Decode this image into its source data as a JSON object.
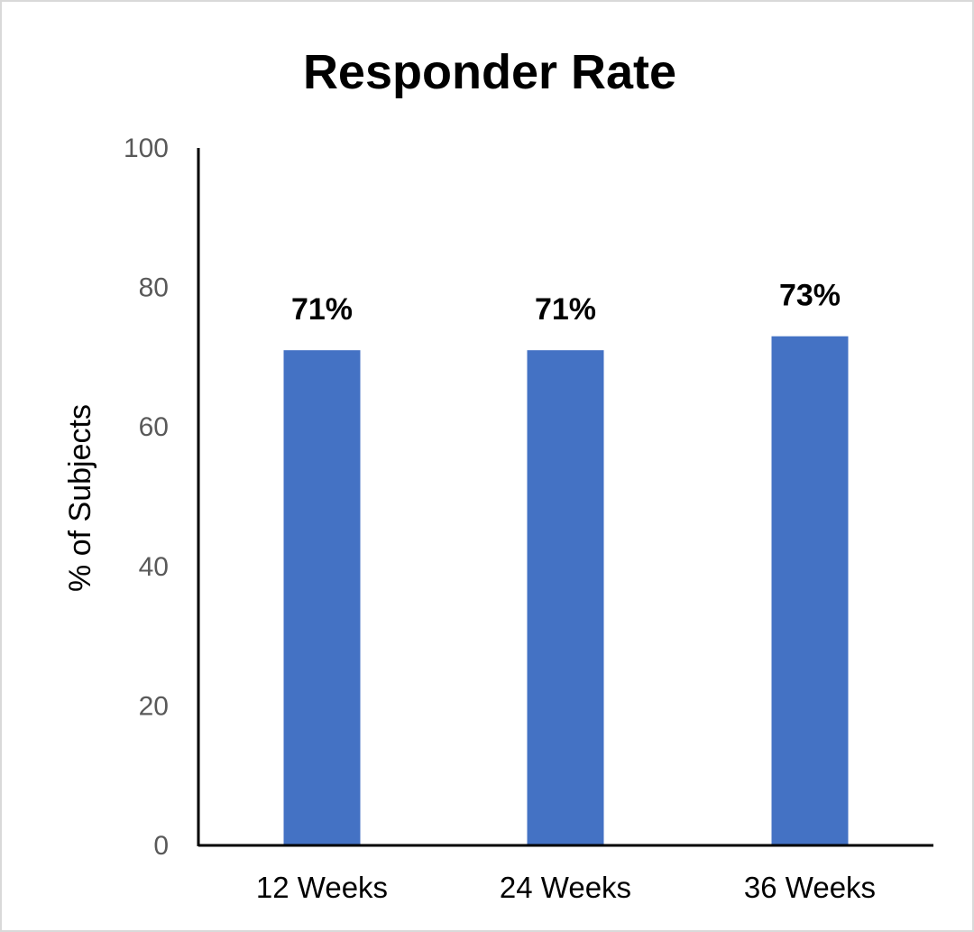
{
  "chart_data": {
    "type": "bar",
    "title": "Responder Rate",
    "xlabel": "",
    "ylabel": "% of Subjects",
    "categories": [
      "12 Weeks",
      "24 Weeks",
      "36 Weeks"
    ],
    "values": [
      71,
      71,
      73
    ],
    "data_labels": [
      "71%",
      "71%",
      "73%"
    ],
    "ylim": [
      0,
      100
    ],
    "yticks": [
      0,
      20,
      40,
      60,
      80,
      100
    ],
    "bar_color": "#4472C4",
    "grid": false,
    "legend": "none"
  }
}
